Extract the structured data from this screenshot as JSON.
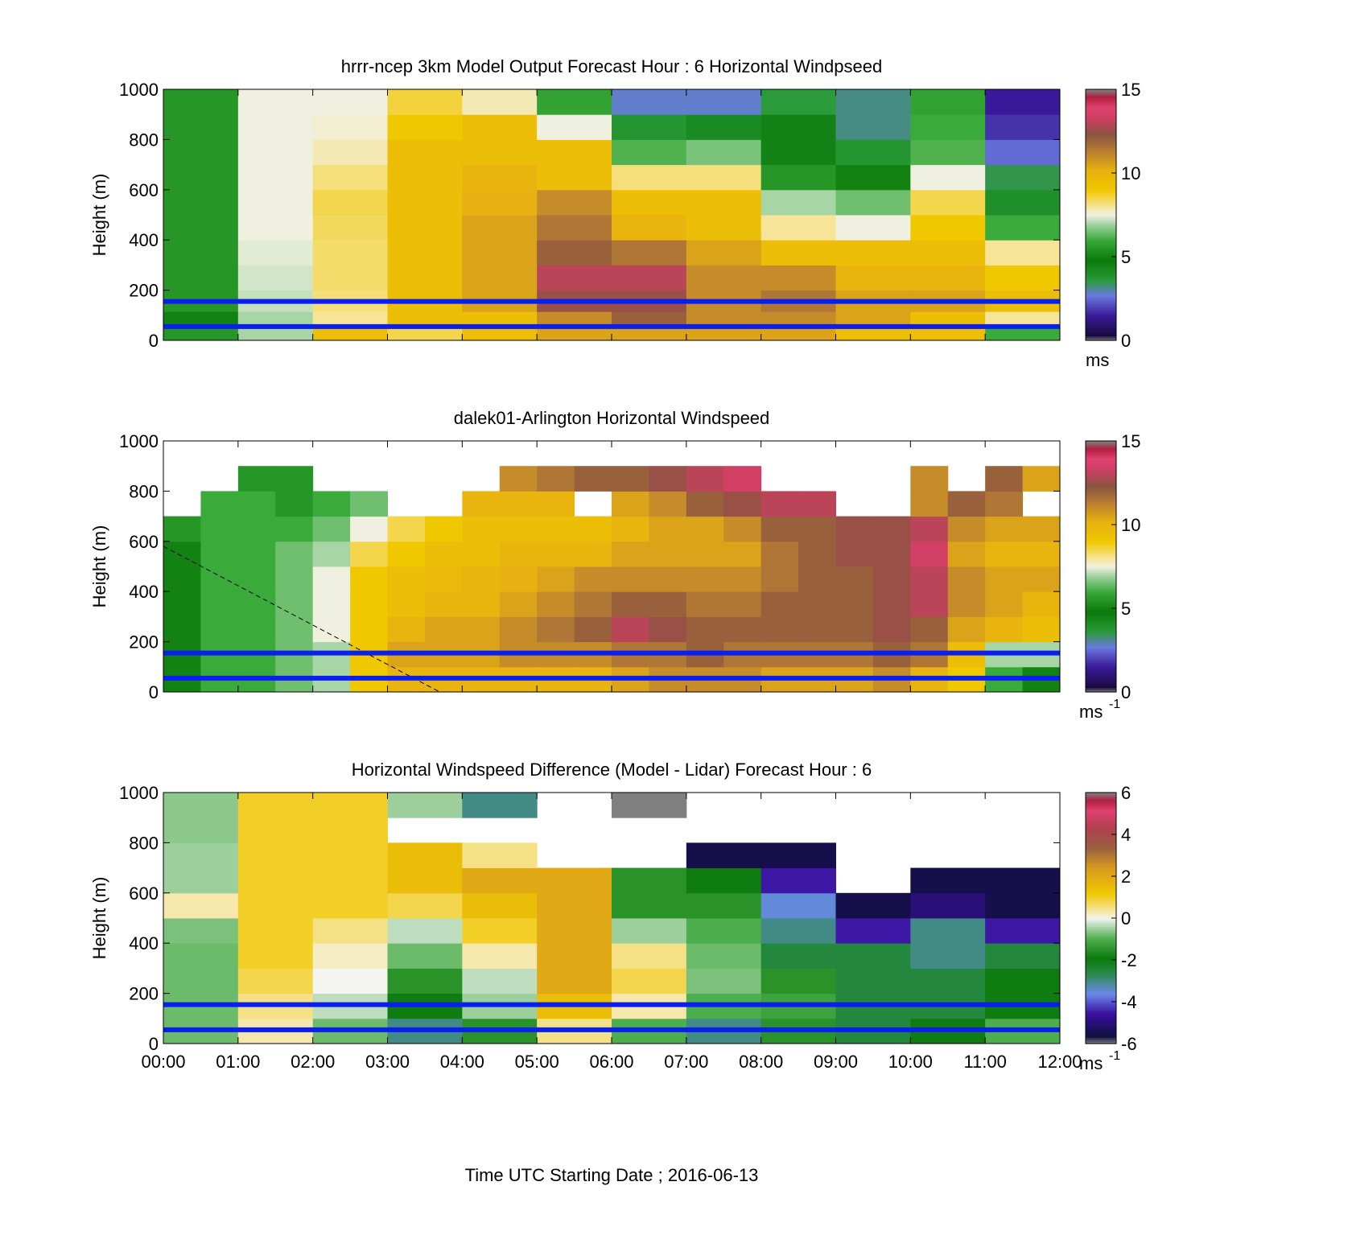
{
  "x_ticks": [
    "00:00",
    "01:00",
    "02:00",
    "03:00",
    "04:00",
    "05:00",
    "06:00",
    "07:00",
    "08:00",
    "09:00",
    "10:00",
    "11:00",
    "12:00"
  ],
  "x_label": "Time UTC  Starting Date ; 2016-06-13",
  "colormaps": {
    "speed": [
      [
        0.0,
        "#808080"
      ],
      [
        0.02,
        "#1a0a40"
      ],
      [
        0.1,
        "#3a1a9a"
      ],
      [
        0.18,
        "#6a7adf"
      ],
      [
        0.24,
        "#2a9a3a"
      ],
      [
        0.32,
        "#0a7a0a"
      ],
      [
        0.4,
        "#3aaa3a"
      ],
      [
        0.46,
        "#9ad09a"
      ],
      [
        0.5,
        "#f0f0e0"
      ],
      [
        0.53,
        "#f6e6a0"
      ],
      [
        0.6,
        "#f0c800"
      ],
      [
        0.68,
        "#e8b010"
      ],
      [
        0.76,
        "#b57a35"
      ],
      [
        0.82,
        "#8a5540"
      ],
      [
        0.88,
        "#c84060"
      ],
      [
        0.93,
        "#e04070"
      ],
      [
        0.97,
        "#b02040"
      ],
      [
        1.0,
        "#808080"
      ]
    ],
    "diff": [
      [
        0.0,
        "#808080"
      ],
      [
        0.03,
        "#101040"
      ],
      [
        0.12,
        "#3a10a0"
      ],
      [
        0.2,
        "#6a8ae8"
      ],
      [
        0.28,
        "#2a8a4a"
      ],
      [
        0.34,
        "#0a7a0a"
      ],
      [
        0.42,
        "#50b050"
      ],
      [
        0.48,
        "#c8e0c8"
      ],
      [
        0.5,
        "#f4f4f0"
      ],
      [
        0.53,
        "#f6e6a0"
      ],
      [
        0.6,
        "#f0c800"
      ],
      [
        0.7,
        "#d89a20"
      ],
      [
        0.78,
        "#9a6040"
      ],
      [
        0.86,
        "#b04050"
      ],
      [
        0.93,
        "#e04070"
      ],
      [
        0.97,
        "#b02040"
      ],
      [
        1.0,
        "#808080"
      ]
    ]
  },
  "chart_data": [
    {
      "type": "heatmap",
      "title": "hrrr-ncep 3km Model Output   Forecast Hour : 6 Horizontal Windpseed",
      "ylabel": "Height (m)",
      "xlim": [
        0,
        12
      ],
      "ylim": [
        0,
        1000
      ],
      "y_ticks": [
        "0",
        "200",
        "400",
        "600",
        "800",
        "1000"
      ],
      "colorbar": {
        "min": 0,
        "max": 15,
        "ticks": [
          "0",
          "5",
          "10",
          "15"
        ],
        "unit": "ms",
        "unit_sup": "",
        "colormap": "speed"
      },
      "reference_lines_height_m": [
        155,
        55
      ],
      "x_hours": [
        0,
        1,
        2,
        3,
        4,
        5,
        6,
        7,
        8,
        9,
        10,
        11
      ],
      "levels_m": [
        40,
        80,
        150,
        250,
        350,
        450,
        550,
        650,
        750,
        850,
        950
      ],
      "values": [
        [
          5.5,
          7,
          9.5,
          8.5,
          9.5,
          10.5,
          10.5,
          10.5,
          10.5,
          9.5,
          9.5,
          6
        ],
        [
          4.5,
          7,
          8,
          9.5,
          9.5,
          11,
          12,
          11,
          11,
          10.5,
          9.5,
          8
        ],
        [
          5.5,
          7.2,
          8.2,
          9.5,
          10.5,
          12.5,
          12.5,
          11,
          11.5,
          10.5,
          10.5,
          9.5
        ],
        [
          5.5,
          7.3,
          8.3,
          9.5,
          10.5,
          13,
          13,
          11,
          11,
          10,
          10,
          9
        ],
        [
          5.5,
          7.4,
          8.3,
          9.5,
          10.5,
          12,
          11.5,
          10.5,
          9.5,
          9.5,
          9.5,
          8
        ],
        [
          5.5,
          7.5,
          8.4,
          9.5,
          10.5,
          11.5,
          10,
          9.5,
          8,
          7.5,
          9,
          6
        ],
        [
          5.5,
          7.5,
          8.5,
          9.5,
          10.2,
          11,
          9.5,
          9.5,
          7,
          6.5,
          8.5,
          4
        ],
        [
          5.5,
          7.5,
          8.2,
          9.5,
          10,
          9.5,
          8.2,
          8.2,
          5.5,
          5,
          7.5,
          3.5
        ],
        [
          5.5,
          7.5,
          7.8,
          9.5,
          9.5,
          9.5,
          6.2,
          6.6,
          4.5,
          3.8,
          6.2,
          2.5
        ],
        [
          5.5,
          7.5,
          7.6,
          9,
          9.5,
          7.5,
          3.8,
          4.2,
          4.5,
          3.2,
          6,
          1.8
        ],
        [
          5.5,
          7.5,
          7.5,
          8.6,
          7.8,
          5.8,
          2.8,
          2.8,
          3.6,
          3.2,
          5.8,
          1.5
        ]
      ]
    },
    {
      "type": "heatmap",
      "title": "dalek01-Arlington  Horizontal Windspeed",
      "ylabel": "Height (m)",
      "xlim": [
        0,
        12
      ],
      "ylim": [
        0,
        1000
      ],
      "y_ticks": [
        "0",
        "200",
        "400",
        "600",
        "800",
        "1000"
      ],
      "colorbar": {
        "min": 0,
        "max": 15,
        "ticks": [
          "0",
          "5",
          "10",
          "15"
        ],
        "unit": "ms",
        "unit_sup": "-1",
        "colormap": "speed"
      },
      "reference_lines_height_m": [
        155,
        55
      ],
      "annotation_line": {
        "from": [
          0,
          580
        ],
        "to": [
          3.7,
          0
        ],
        "style": "dashed"
      },
      "x_hours": [
        0,
        0.5,
        1,
        1.5,
        2,
        2.5,
        3,
        3.5,
        4,
        4.5,
        5,
        5.5,
        6,
        6.5,
        7,
        7.5,
        8,
        8.5,
        9,
        9.5,
        10,
        10.5,
        11,
        11.5
      ],
      "levels_m": [
        50,
        150,
        250,
        350,
        450,
        550,
        650,
        750,
        850,
        950
      ],
      "values": [
        [
          5,
          6,
          6,
          6.5,
          7,
          9,
          10,
          10,
          10,
          10,
          10,
          10,
          10.5,
          11,
          11,
          11,
          10.5,
          10.5,
          10.5,
          11,
          10,
          9,
          6,
          5
        ],
        [
          5,
          6,
          6,
          6.5,
          7,
          9,
          10.5,
          10.5,
          10.5,
          11,
          11,
          11,
          11.5,
          11.5,
          12,
          11.5,
          11.5,
          11.5,
          11.5,
          12,
          11.5,
          9.5,
          7,
          7
        ],
        [
          5,
          6,
          6,
          6.5,
          7.5,
          9,
          10,
          10.5,
          10.5,
          11,
          11.5,
          12,
          13,
          12.5,
          12,
          12,
          12,
          12,
          12,
          12.5,
          12,
          10.5,
          10,
          9.5
        ],
        [
          5,
          6,
          6,
          6.5,
          7.5,
          9,
          9.5,
          10,
          10,
          10.5,
          11,
          11.5,
          12,
          12,
          11.5,
          11.5,
          12,
          12,
          12,
          12.5,
          13,
          11,
          10.5,
          10
        ],
        [
          5,
          6,
          6,
          6.5,
          7.5,
          9,
          9.5,
          9.8,
          10,
          10.2,
          10.5,
          11,
          11,
          11,
          11,
          11,
          11.5,
          12,
          12,
          12.5,
          13,
          11,
          10.5,
          10.5
        ],
        [
          5,
          6,
          6,
          6.5,
          7,
          8.5,
          9,
          9.5,
          9.5,
          10,
          10,
          10,
          10.5,
          10.5,
          10.5,
          10.5,
          11.5,
          12,
          12.5,
          12.5,
          13.5,
          10.5,
          10,
          10
        ],
        [
          5.5,
          6,
          6,
          6,
          6.5,
          7.5,
          8.5,
          9,
          9.5,
          9.5,
          9.5,
          9.5,
          10,
          10.5,
          10.5,
          11,
          12,
          12,
          12.5,
          12.5,
          13,
          11,
          10.5,
          10.5
        ],
        [
          null,
          6,
          6,
          5.5,
          6,
          6.5,
          null,
          null,
          10,
          10,
          10,
          null,
          10.5,
          11,
          12,
          12.5,
          13,
          13,
          null,
          null,
          11,
          12,
          11.5,
          null
        ],
        [
          null,
          null,
          5.5,
          5.5,
          null,
          null,
          null,
          null,
          null,
          11,
          11.5,
          12,
          12,
          12.5,
          13,
          13.5,
          null,
          null,
          null,
          null,
          11,
          null,
          12,
          10.5
        ],
        [
          null,
          null,
          null,
          null,
          null,
          null,
          null,
          null,
          null,
          null,
          null,
          null,
          null,
          null,
          null,
          null,
          null,
          null,
          null,
          null,
          null,
          null,
          null,
          null
        ]
      ]
    },
    {
      "type": "heatmap",
      "title": "Horizontal Windspeed Difference (Model - Lidar) Forecast Hour : 6",
      "ylabel": "Height (m)",
      "xlim": [
        0,
        12
      ],
      "ylim": [
        0,
        1000
      ],
      "y_ticks": [
        "0",
        "200",
        "400",
        "600",
        "800",
        "1000"
      ],
      "colorbar": {
        "min": -6,
        "max": 6,
        "ticks": [
          "-6",
          "-4",
          "-2",
          "0",
          "2",
          "4",
          "6"
        ],
        "unit": "ms",
        "unit_sup": "-1",
        "colormap": "diff"
      },
      "reference_lines_height_m": [
        155,
        55
      ],
      "x_hours": [
        0,
        1,
        2,
        3,
        4,
        5,
        6,
        7,
        8,
        9,
        10,
        11
      ],
      "levels_m": [
        50,
        150,
        250,
        350,
        450,
        550,
        650,
        750,
        850,
        950
      ],
      "values": [
        [
          -0.8,
          0.3,
          -0.8,
          -3,
          -1.5,
          0.5,
          -1,
          -3,
          -1.5,
          -2.5,
          -2,
          -1
        ],
        [
          -0.8,
          0.5,
          -0.3,
          -2,
          -0.5,
          1.5,
          0.3,
          -1,
          -1.2,
          -2.5,
          -2.5,
          -2
        ],
        [
          -0.8,
          0.8,
          0,
          -1.5,
          -0.3,
          2,
          0.8,
          -0.7,
          -1.5,
          -2.5,
          -2.5,
          -2
        ],
        [
          -0.8,
          1,
          0.2,
          -0.8,
          0.3,
          2,
          0.5,
          -0.8,
          -2.5,
          -2.5,
          -3,
          -2.5
        ],
        [
          -0.7,
          1,
          0.5,
          -0.3,
          1,
          2,
          -0.5,
          -1,
          -3,
          -4.5,
          -3,
          -4.5
        ],
        [
          0.3,
          1,
          1,
          0.8,
          1.5,
          2,
          -1.5,
          -1.5,
          -3.5,
          -5.5,
          -5,
          -5.5
        ],
        [
          -0.5,
          1,
          1,
          1.5,
          2,
          2,
          -1.5,
          -2,
          -4.5,
          null,
          -5.5,
          -5.5
        ],
        [
          -0.5,
          1,
          1,
          1.5,
          0.5,
          null,
          null,
          -5.5,
          -5.5,
          null,
          null,
          null
        ],
        [
          -0.6,
          1,
          1,
          null,
          null,
          null,
          null,
          null,
          null,
          null,
          null,
          null
        ],
        [
          -0.6,
          1,
          1,
          -0.5,
          -3,
          null,
          -6,
          null,
          null,
          null,
          null,
          null
        ]
      ]
    }
  ]
}
